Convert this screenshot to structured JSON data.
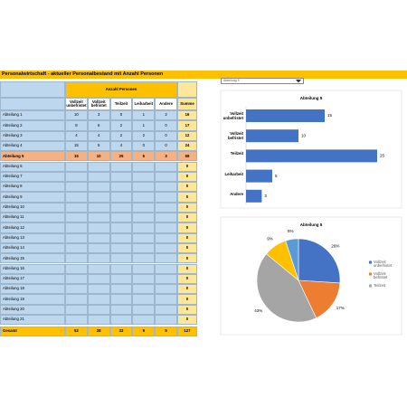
{
  "header": {
    "title": "Personalwirtschaft - aktueller Personalbestand mit Anzahl Personen"
  },
  "dropdown": "Abteilung 5",
  "table": {
    "group_header": "Anzahl Personen",
    "columns": [
      "Vollzeit unbefristet",
      "Vollzeit befristet",
      "Teilzeit",
      "Leiharbeit",
      "Andere",
      "Summe"
    ],
    "rows": [
      [
        "Abteilung 1",
        10,
        3,
        0,
        1,
        2,
        16
      ],
      [
        "Abteilung 2",
        8,
        6,
        2,
        1,
        0,
        17
      ],
      [
        "Abteilung 3",
        4,
        4,
        2,
        2,
        0,
        12
      ],
      [
        "Abteilung 4",
        15,
        5,
        4,
        0,
        0,
        24
      ],
      [
        "Abteilung 5",
        15,
        10,
        25,
        5,
        3,
        58
      ],
      [
        "Abteilung 6",
        null,
        null,
        null,
        null,
        null,
        0
      ],
      [
        "Abteilung 7",
        null,
        null,
        null,
        null,
        null,
        0
      ],
      [
        "Abteilung 8",
        null,
        null,
        null,
        null,
        null,
        0
      ],
      [
        "Abteilung 9",
        null,
        null,
        null,
        null,
        null,
        0
      ],
      [
        "Abteilung 10",
        null,
        null,
        null,
        null,
        null,
        0
      ],
      [
        "Abteilung 11",
        null,
        null,
        null,
        null,
        null,
        0
      ],
      [
        "Abteilung 12",
        null,
        null,
        null,
        null,
        null,
        0
      ],
      [
        "Abteilung 13",
        null,
        null,
        null,
        null,
        null,
        0
      ],
      [
        "Abteilung 14",
        null,
        null,
        null,
        null,
        null,
        0
      ],
      [
        "Abteilung 15",
        null,
        null,
        null,
        null,
        null,
        0
      ],
      [
        "Abteilung 16",
        null,
        null,
        null,
        null,
        null,
        0
      ],
      [
        "Abteilung 17",
        null,
        null,
        null,
        null,
        null,
        0
      ],
      [
        "Abteilung 18",
        null,
        null,
        null,
        null,
        null,
        0
      ],
      [
        "Abteilung 19",
        null,
        null,
        null,
        null,
        null,
        0
      ],
      [
        "Abteilung 20",
        null,
        null,
        null,
        null,
        null,
        0
      ],
      [
        "Abteilung 21",
        null,
        null,
        null,
        null,
        null,
        0
      ]
    ],
    "total": [
      "Gesamt",
      52,
      28,
      33,
      9,
      5,
      127
    ]
  },
  "bar_chart": {
    "type": "bar",
    "title": "Abteilung 5",
    "categories": [
      "Vollzeit unbefristet",
      "Vollzeit befristet",
      "Teilzeit",
      "Leiharbeit",
      "Andere"
    ],
    "values": [
      15,
      10,
      25,
      5,
      3
    ],
    "color": "#4472c4"
  },
  "pie_chart": {
    "type": "pie",
    "title": "Abteilung 5",
    "values": [
      26,
      17,
      43,
      9,
      5
    ],
    "value_labels": [
      "26%",
      "17%",
      "43%",
      "9%",
      "5%"
    ],
    "colors": [
      "#4472c4",
      "#ed7d31",
      "#a5a5a5",
      "#ffc000",
      "#5b9bd5"
    ],
    "legend": [
      "Vollzeit unbefristet",
      "Vollzeit befristet",
      "Teilzeit"
    ]
  }
}
